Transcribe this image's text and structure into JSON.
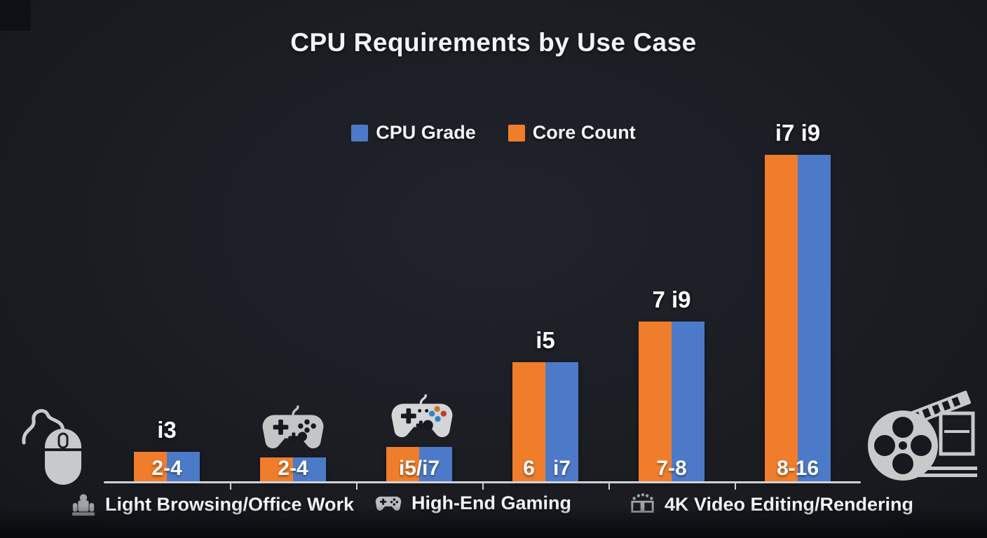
{
  "chart_data": {
    "type": "bar",
    "title": "CPU Requirements by Use Case",
    "xlabel": "",
    "ylabel": "",
    "grid": false,
    "legend_position": "top-center",
    "legend": [
      {
        "label": "CPU Grade",
        "color": "#4d7ac8"
      },
      {
        "label": "Core Count",
        "color": "#f07d2b"
      }
    ],
    "series_meta": [
      {
        "name": "Core Count",
        "color": "#f07d2b",
        "position": "left"
      },
      {
        "name": "CPU Grade",
        "color": "#4d7ac8",
        "position": "right"
      }
    ],
    "groups": [
      {
        "above_label": "i3",
        "bar_label": "2-4",
        "height_pct": 9.4
      },
      {
        "above_label": "",
        "bar_label": "2-4",
        "height_pct": 7.7,
        "icon_above": "gamepad-plain-icon"
      },
      {
        "above_label": "",
        "bar_label": "i5/i7",
        "height_pct": 10.9,
        "icon_above": "gamepad-colored-icon"
      },
      {
        "above_label": "i5",
        "bar_label_left": "6",
        "bar_label_right": "i7",
        "height_pct": 36.8
      },
      {
        "above_label": "7 i9",
        "bar_label": "7-8",
        "height_pct": 49.1
      },
      {
        "above_label": "i7 i9",
        "bar_label": "8-16",
        "height_pct": 100
      }
    ],
    "x_axis_labels": [
      {
        "icon": "office-desk-icon",
        "label": "Light Browsing/Office Work"
      },
      {
        "icon": "gamepad-icon",
        "label": "High-End Gaming"
      },
      {
        "icon": "video-editing-icon",
        "label": "4K Video Editing/Rendering"
      }
    ]
  },
  "colors": {
    "orange": "#f07d2b",
    "blue": "#4d7ac8",
    "background": "#1b1d23",
    "text": "#f2f3f5",
    "axis": "#cfd2d5",
    "icon_light_gray": "#c7c9cb",
    "icon_mid_gray": "#9fa4a8"
  },
  "decorations": [
    "computer-mouse-icon",
    "gamepad-plain-icon",
    "gamepad-colored-icon",
    "film-reel-icon"
  ]
}
